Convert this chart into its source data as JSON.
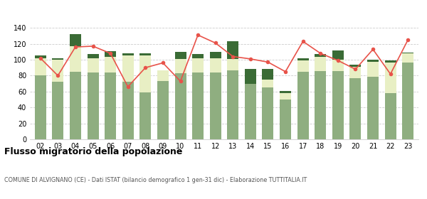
{
  "years": [
    "02",
    "03",
    "04",
    "05",
    "06",
    "07",
    "08",
    "09",
    "10",
    "11",
    "12",
    "13",
    "14",
    "15",
    "16",
    "17",
    "18",
    "19",
    "20",
    "21",
    "22",
    "23"
  ],
  "iscritti_comuni": [
    80,
    72,
    85,
    84,
    84,
    72,
    59,
    73,
    83,
    84,
    84,
    87,
    70,
    65,
    50,
    85,
    86,
    86,
    77,
    79,
    58,
    96
  ],
  "iscritti_estero": [
    22,
    28,
    32,
    18,
    20,
    33,
    46,
    14,
    18,
    18,
    18,
    14,
    0,
    10,
    8,
    14,
    18,
    14,
    14,
    18,
    38,
    12
  ],
  "iscritti_altri": [
    3,
    2,
    15,
    5,
    7,
    3,
    3,
    0,
    9,
    5,
    8,
    22,
    18,
    13,
    3,
    3,
    3,
    12,
    3,
    3,
    3,
    1
  ],
  "cancellati": [
    102,
    80,
    116,
    117,
    108,
    66,
    90,
    96,
    73,
    131,
    121,
    104,
    101,
    97,
    85,
    123,
    108,
    99,
    88,
    113,
    82,
    125
  ],
  "color_comuni": "#8fae80",
  "color_estero": "#e8efc4",
  "color_altri": "#3a6b35",
  "color_cancellati": "#e8534a",
  "title": "Flusso migratorio della popolazione",
  "subtitle": "COMUNE DI ALVIGNANO (CE) - Dati ISTAT (bilancio demografico 1 gen-31 dic) - Elaborazione TUTTITALIA.IT",
  "ylim": [
    0,
    145
  ],
  "yticks": [
    0,
    20,
    40,
    60,
    80,
    100,
    120,
    140
  ],
  "background_color": "#ffffff",
  "grid_color": "#cccccc"
}
